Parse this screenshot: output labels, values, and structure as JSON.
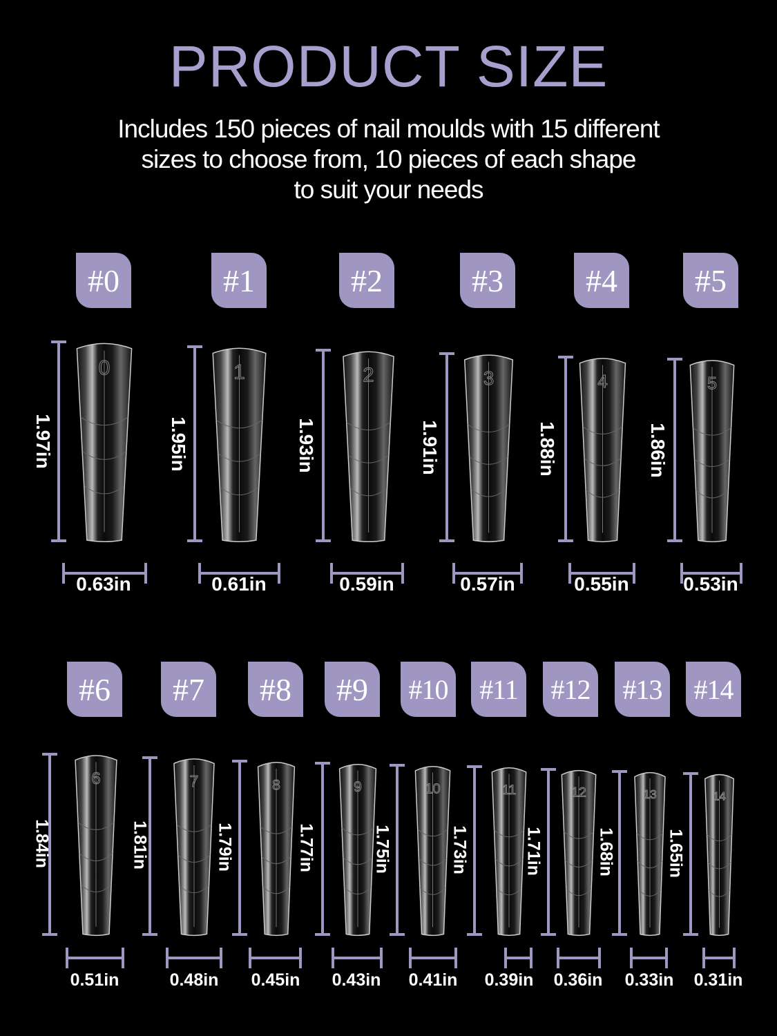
{
  "title": "PRODUCT SIZE",
  "subtitle_lines": [
    "Includes 150 pieces of nail moulds with 15 different",
    "sizes to choose from, 10 pieces of each shape",
    "to suit your needs"
  ],
  "colors": {
    "accent": "#9f96c2",
    "title": "#a99fcf",
    "background": "#000000"
  },
  "sizes": [
    {
      "badge": "#0",
      "number": "0",
      "length": "1.97in",
      "width": "0.63in"
    },
    {
      "badge": "#1",
      "number": "1",
      "length": "1.95in",
      "width": "0.61in"
    },
    {
      "badge": "#2",
      "number": "2",
      "length": "1.93in",
      "width": "0.59in"
    },
    {
      "badge": "#3",
      "number": "3",
      "length": "1.91in",
      "width": "0.57in"
    },
    {
      "badge": "#4",
      "number": "4",
      "length": "1.88in",
      "width": "0.55in"
    },
    {
      "badge": "#5",
      "number": "5",
      "length": "1.86in",
      "width": "0.53in"
    },
    {
      "badge": "#6",
      "number": "6",
      "length": "1.84in",
      "width": "0.51in"
    },
    {
      "badge": "#7",
      "number": "7",
      "length": "1.81in",
      "width": "0.48in"
    },
    {
      "badge": "#8",
      "number": "8",
      "length": "1.79in",
      "width": "0.45in"
    },
    {
      "badge": "#9",
      "number": "9",
      "length": "1.77in",
      "width": "0.43in"
    },
    {
      "badge": "#10",
      "number": "10",
      "length": "1.75in",
      "width": "0.41in"
    },
    {
      "badge": "#11",
      "number": "11",
      "length": "1.73in",
      "width": "0.39in"
    },
    {
      "badge": "#12",
      "number": "12",
      "length": "1.71in",
      "width": "0.36in"
    },
    {
      "badge": "#13",
      "number": "13",
      "length": "1.68in",
      "width": "0.33in"
    },
    {
      "badge": "#14",
      "number": "14",
      "length": "1.65in",
      "width": "0.31in"
    }
  ]
}
